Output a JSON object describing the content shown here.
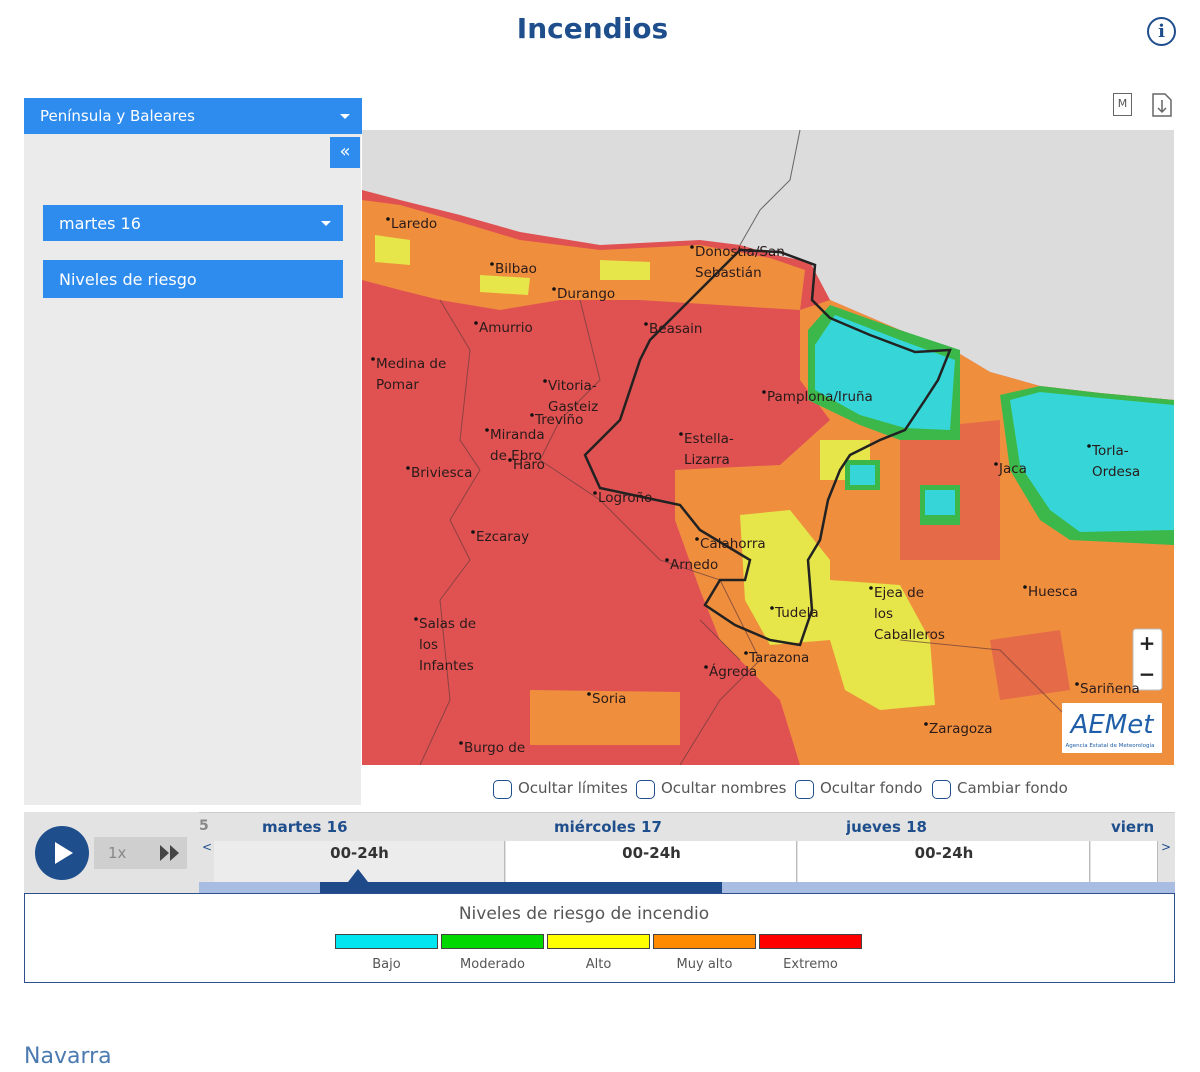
{
  "header": {
    "title": "Incendios",
    "info": "i"
  },
  "sidebar": {
    "region_select": "Península y Baleares",
    "collapse": "«",
    "day_select": "martes 16",
    "layer_button": "Niveles de riesgo"
  },
  "map_tools": {
    "map_button": "M"
  },
  "map": {
    "places": [
      {
        "lines": [
          "Laredo"
        ]
      },
      {
        "lines": [
          "Bilbao"
        ]
      },
      {
        "lines": [
          "Durango"
        ]
      },
      {
        "lines": [
          "Donostia/San",
          "Sebastián"
        ]
      },
      {
        "lines": [
          "Amurrio"
        ]
      },
      {
        "lines": [
          "Beasain"
        ]
      },
      {
        "lines": [
          "Medina de",
          "Pomar"
        ]
      },
      {
        "lines": [
          "Vitoria-",
          "Gasteiz"
        ]
      },
      {
        "lines": [
          "Treviño"
        ]
      },
      {
        "lines": [
          "Pamplona/Iruña"
        ]
      },
      {
        "lines": [
          "Miranda",
          "de Ebro"
        ]
      },
      {
        "lines": [
          "Haro"
        ]
      },
      {
        "lines": [
          "Estella-",
          "Lizarra"
        ]
      },
      {
        "lines": [
          "Briviesca"
        ]
      },
      {
        "lines": [
          "Logroño"
        ]
      },
      {
        "lines": [
          "Jaca"
        ]
      },
      {
        "lines": [
          "Torla-",
          "Ordesa"
        ]
      },
      {
        "lines": [
          "Ezcaray"
        ]
      },
      {
        "lines": [
          "Calahorra"
        ]
      },
      {
        "lines": [
          "Arnedo"
        ]
      },
      {
        "lines": [
          "Ejea de",
          "los",
          "Caballeros"
        ]
      },
      {
        "lines": [
          "Huesca"
        ]
      },
      {
        "lines": [
          "Tudela"
        ]
      },
      {
        "lines": [
          "Salas de",
          "los",
          "Infantes"
        ]
      },
      {
        "lines": [
          "Tarazona"
        ]
      },
      {
        "lines": [
          "Ágreda"
        ]
      },
      {
        "lines": [
          "Sariñena"
        ]
      },
      {
        "lines": [
          "Soria"
        ]
      },
      {
        "lines": [
          "Zaragoza"
        ]
      },
      {
        "lines": [
          "Burgo de"
        ]
      }
    ],
    "zoom_in": "+",
    "zoom_out": "−",
    "logo": {
      "name": "AEMet",
      "subtitle": "Agencia Estatal de Meteorología"
    }
  },
  "options": [
    "Ocultar límites",
    "Ocultar nombres",
    "Ocultar fondo",
    "Cambiar fondo"
  ],
  "timeline": {
    "speed": "1x",
    "prev_fragment": "5",
    "prev": "<",
    "next": ">",
    "days": [
      {
        "day": "martes 16",
        "range": "00-24h"
      },
      {
        "day": "miércoles 17",
        "range": "00-24h"
      },
      {
        "day": "jueves 18",
        "range": "00-24h"
      },
      {
        "day": "viernes"
      }
    ]
  },
  "legend": {
    "title": "Niveles de riesgo de incendio",
    "levels": [
      {
        "label": "Bajo",
        "color": "#00e5f0"
      },
      {
        "label": "Moderado",
        "color": "#00d800"
      },
      {
        "label": "Alto",
        "color": "#ffff00"
      },
      {
        "label": "Muy alto",
        "color": "#ff8a00"
      },
      {
        "label": "Extremo",
        "color": "#ff0000"
      }
    ]
  },
  "footer": {
    "section": "Navarra"
  }
}
